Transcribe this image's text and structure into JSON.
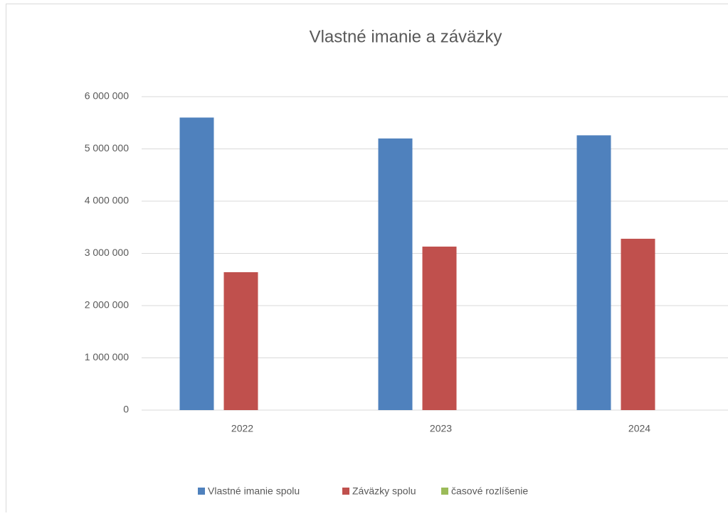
{
  "chart_data": {
    "type": "bar",
    "title": "Vlastné imanie a záväzky",
    "categories": [
      "2022",
      "2023",
      "2024"
    ],
    "series": [
      {
        "name": "Vlastné imanie spolu",
        "color": "#4f81bd",
        "values": [
          5600000,
          5200000,
          5260000
        ]
      },
      {
        "name": "Záväzky spolu",
        "color": "#c0504d",
        "values": [
          2640000,
          3130000,
          3280000
        ]
      },
      {
        "name": "časové rozlíšenie",
        "color": "#9bbb59",
        "values": [
          0,
          0,
          0
        ]
      }
    ],
    "ylim": [
      0,
      6000000
    ],
    "yticks": [
      0,
      {
        "value": 1000000,
        "label": "1 000 000"
      },
      {
        "value": 2000000,
        "label": "2 000 000"
      },
      {
        "value": 3000000,
        "label": "3 000 000"
      },
      {
        "value": 4000000,
        "label": "4 000 000"
      },
      {
        "value": 5000000,
        "label": "5 000 000"
      },
      {
        "value": 6000000,
        "label": "6 000 000"
      }
    ],
    "grid": true,
    "legend": "bottom"
  }
}
